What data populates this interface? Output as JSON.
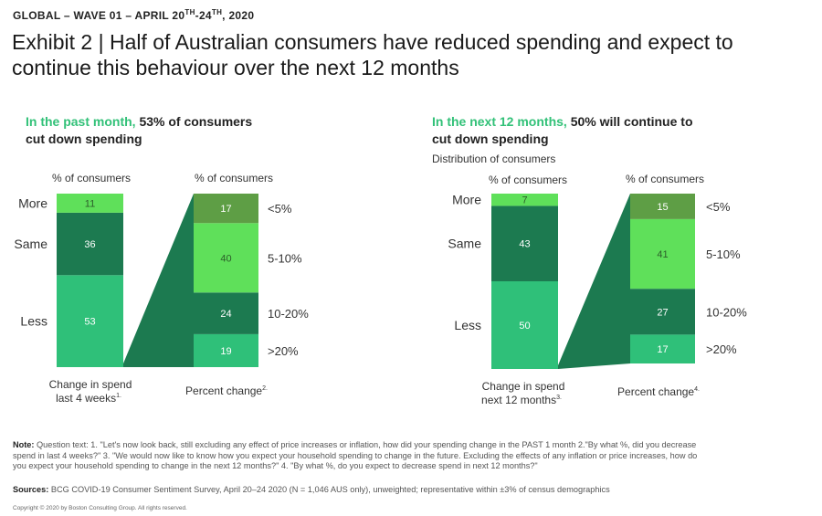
{
  "header": {
    "kicker": "GLOBAL – WAVE 01 – APRIL 20",
    "kicker_sup1": "TH",
    "kicker_mid": "-24",
    "kicker_sup2": "TH",
    "kicker_end": ", 2020",
    "title": "Exhibit 2 | Half of Australian consumers have reduced spending and expect to continue this behaviour over the next 12 months"
  },
  "colors": {
    "light_green": "#5fe05a",
    "dark_green": "#1c7a50",
    "mid_green": "#2fc079",
    "olive_green": "#5e9e45",
    "headline_green": "#32c178"
  },
  "left_panel": {
    "head_green": "In the past month,",
    "head_rest_line1": " 53% of consumers",
    "head_line2": "cut down spending",
    "col1_label": "% of consumers",
    "col2_label": "% of consumers",
    "col1_caption_line1": "Change in spend",
    "col1_caption_line2": "last 4 weeks",
    "col1_caption_sup": "1.",
    "col2_caption": "Percent change",
    "col2_caption_sup": "2."
  },
  "right_panel": {
    "head_green": "In the next 12 months,",
    "head_rest_line1": " 50% will continue to",
    "head_line2": "cut down spending",
    "subnote": "Distribution of consumers",
    "col1_label": "% of consumers",
    "col2_label": "% of consumers",
    "col1_caption_line1": "Change in spend",
    "col1_caption_line2": "next 12 months",
    "col1_caption_sup": "3.",
    "col2_caption": "Percent change",
    "col2_caption_sup": "4."
  },
  "chart_data": [
    {
      "type": "bar",
      "stacked": true,
      "title": "Change in spend last 4 weeks",
      "ylabel": "% of consumers",
      "segments": [
        {
          "name": "Less",
          "value": 53
        },
        {
          "name": "Same",
          "value": 36
        },
        {
          "name": "More",
          "value": 11
        }
      ]
    },
    {
      "type": "bar",
      "stacked": true,
      "title": "Percent change (past month)",
      "ylabel": "% of consumers",
      "segments": [
        {
          "name": ">20%",
          "value": 19
        },
        {
          "name": "10-20%",
          "value": 24
        },
        {
          "name": "5-10%",
          "value": 40
        },
        {
          "name": "<5%",
          "value": 17
        }
      ]
    },
    {
      "type": "bar",
      "stacked": true,
      "title": "Change in spend next 12 months",
      "ylabel": "% of consumers",
      "segments": [
        {
          "name": "Less",
          "value": 50
        },
        {
          "name": "Same",
          "value": 43
        },
        {
          "name": "More",
          "value": 7
        }
      ]
    },
    {
      "type": "bar",
      "stacked": true,
      "title": "Percent change (next 12 months)",
      "ylabel": "% of consumers",
      "segments": [
        {
          "name": ">20%",
          "value": 17
        },
        {
          "name": "10-20%",
          "value": 27
        },
        {
          "name": "5-10%",
          "value": 41
        },
        {
          "name": "<5%",
          "value": 15
        }
      ]
    }
  ],
  "notes": {
    "note_label": "Note:",
    "note_text": " Question text: 1. \"Let's now look back, still excluding any effect of price increases or inflation, how did your spending change in the PAST 1 month 2.\"By what %, did you decrease spend in last 4 weeks?\" 3. \"We would now like to know how you expect your household spending to change in the future. Excluding the effects of any inflation or price increases, how do you expect your household spending to change in the next 12 months?\" 4. \"By what %, do you expect to decrease spend in next 12 months?\"",
    "sources_label": "Sources:",
    "sources_text": " BCG COVID-19 Consumer Sentiment Survey, April 20–24 2020 (N = 1,046 AUS only), unweighted;  representative within ±3% of census demographics",
    "copyright": "Copyright © 2020 by Boston Consulting Group. All rights reserved."
  }
}
